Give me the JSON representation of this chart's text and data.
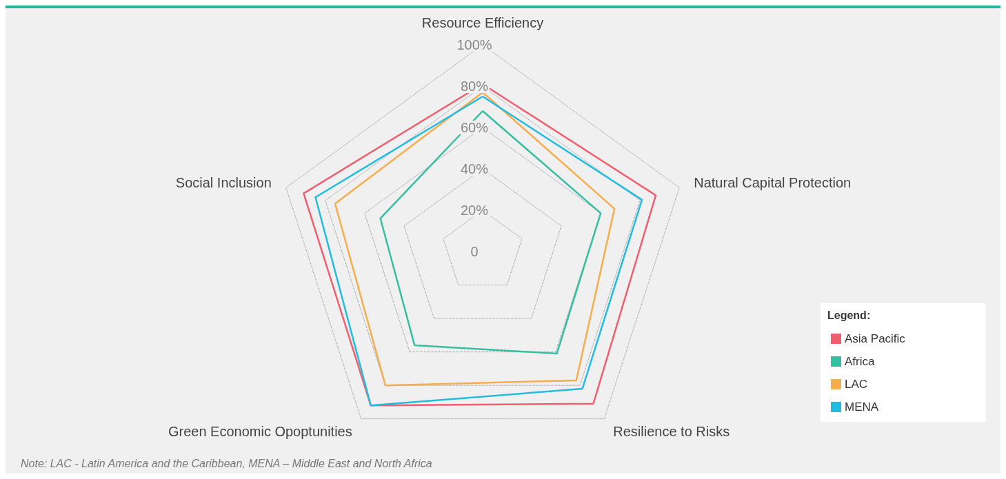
{
  "chart_data": {
    "type": "radar",
    "categories": [
      "Resource Efficiency",
      "Natural Capital Protection",
      "Resilience to Risks",
      "Green Economic Opoptunities",
      "Social Inclusion"
    ],
    "series": [
      {
        "name": "Asia Pacific",
        "color": "#ef5f6e",
        "values": [
          81,
          88,
          91,
          92,
          91
        ]
      },
      {
        "name": "Africa",
        "color": "#35bfa0",
        "values": [
          68,
          60,
          61,
          56,
          52
        ]
      },
      {
        "name": "LAC",
        "color": "#f5ad4f",
        "values": [
          77,
          67,
          77,
          80,
          75
        ]
      },
      {
        "name": "MENA",
        "color": "#22bce0",
        "values": [
          75,
          81,
          82,
          92,
          85
        ]
      }
    ],
    "ylim": [
      0,
      100
    ],
    "yticks": [
      {
        "value": 0,
        "label": "0"
      },
      {
        "value": 20,
        "label": "20%"
      },
      {
        "value": 40,
        "label": "40%"
      },
      {
        "value": 60,
        "label": "60%"
      },
      {
        "value": 80,
        "label": "80%"
      },
      {
        "value": 100,
        "label": "100%"
      }
    ],
    "grid": true,
    "legend": "bottom right",
    "legend_title": "Legend:",
    "marker": "none",
    "line_style": "solid",
    "annotations": [
      "Note: LAC - Latin America and the Caribbean, MENA – Middle East and North Africa"
    ]
  }
}
